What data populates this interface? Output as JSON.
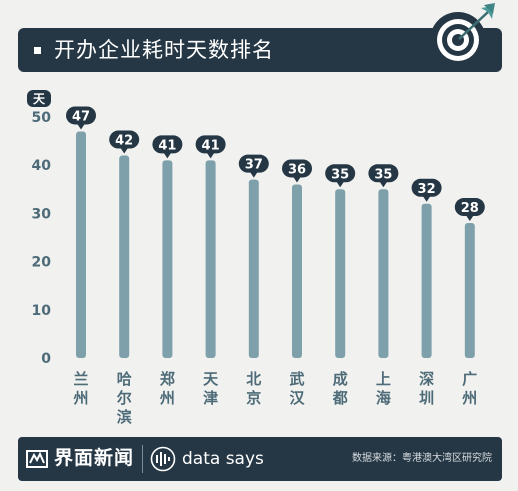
{
  "header": {
    "title": "开办企业耗时天数排名"
  },
  "chart_data": {
    "type": "bar",
    "title": "开办企业耗时天数排名",
    "ylabel": "天",
    "ylim": [
      0,
      50
    ],
    "yticks": [
      0,
      10,
      20,
      30,
      40,
      50
    ],
    "grid": false,
    "categories": [
      "兰州",
      "哈尔滨",
      "郑州",
      "天津",
      "北京",
      "武汉",
      "成都",
      "上海",
      "深圳",
      "广州"
    ],
    "values": [
      47,
      42,
      41,
      41,
      37,
      36,
      35,
      35,
      32,
      28
    ]
  },
  "footer": {
    "brand": "界面新闻",
    "data_says": "data says",
    "source": "数据来源：粤港澳大湾区研究院"
  },
  "colors": {
    "bar": "#7da0aa",
    "bubble": "#253745",
    "axis_label": "#4d6b78",
    "banner": "#253745"
  }
}
